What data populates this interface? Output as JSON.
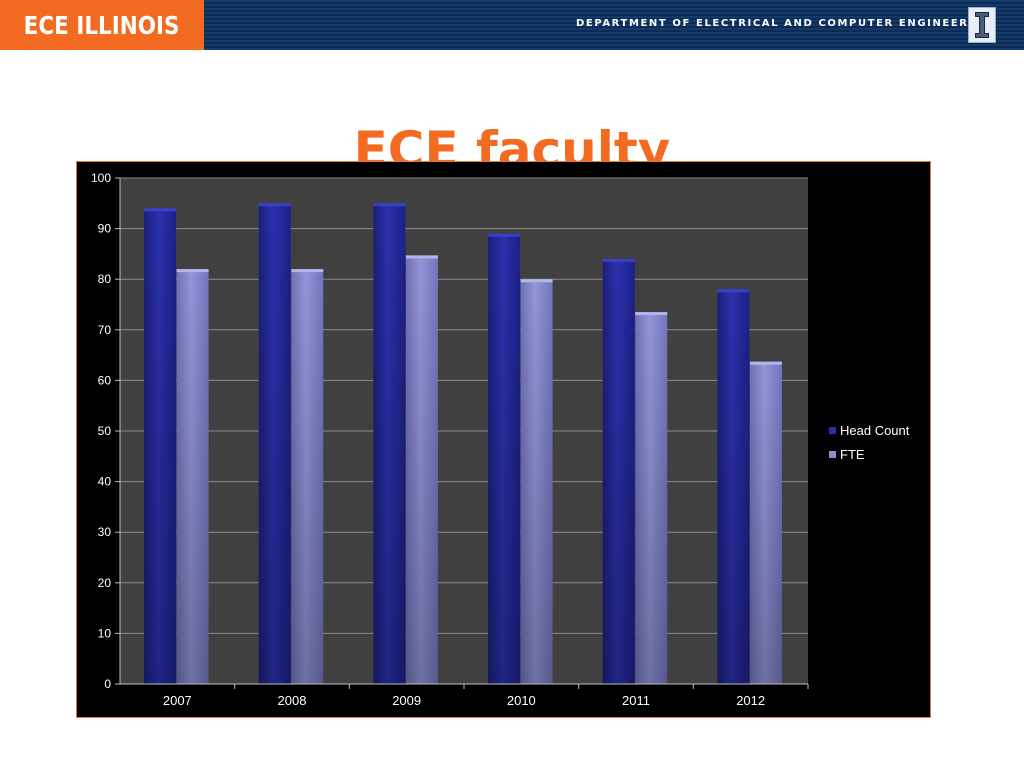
{
  "header": {
    "brand": "ECE ILLINOIS",
    "department": "DEPARTMENT OF ELECTRICAL AND COMPUTER ENGINEERING",
    "logo_icon": "illinois-block-i-icon"
  },
  "slide": {
    "title": "ECE faculty"
  },
  "colors": {
    "accent": "#f26b21",
    "head_count": "#2a2faa",
    "fte": "#8c8fd0"
  },
  "chart_data": {
    "type": "bar",
    "title": "",
    "xlabel": "",
    "ylabel": "",
    "categories": [
      "2007",
      "2008",
      "2009",
      "2010",
      "2011",
      "2012"
    ],
    "series": [
      {
        "name": "Head Count",
        "values": [
          94,
          95,
          95,
          89,
          84,
          78
        ]
      },
      {
        "name": "FTE",
        "values": [
          82,
          82,
          84.7,
          80,
          73.5,
          63.7
        ]
      }
    ],
    "ylim": [
      0,
      100
    ],
    "yticks": [
      0,
      10,
      20,
      30,
      40,
      50,
      60,
      70,
      80,
      90,
      100
    ],
    "grid": true,
    "legend_position": "right"
  }
}
